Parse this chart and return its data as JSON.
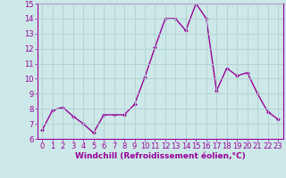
{
  "x": [
    0,
    1,
    2,
    3,
    4,
    5,
    6,
    7,
    8,
    9,
    10,
    11,
    12,
    13,
    14,
    15,
    16,
    17,
    18,
    19,
    20,
    21,
    22,
    23
  ],
  "y": [
    6.6,
    7.9,
    8.1,
    7.5,
    7.0,
    6.4,
    7.6,
    7.6,
    7.6,
    8.3,
    10.1,
    12.1,
    14.0,
    14.0,
    13.2,
    15.0,
    14.0,
    9.2,
    10.7,
    10.2,
    10.4,
    9.0,
    7.8,
    7.3
  ],
  "line_color": "#990099",
  "marker": "D",
  "marker_size": 2.0,
  "line_width": 1.0,
  "xlabel": "Windchill (Refroidissement éolien,°C)",
  "xlabel_fontsize": 6.5,
  "ylim": [
    6,
    15
  ],
  "xlim": [
    -0.5,
    23.5
  ],
  "yticks": [
    6,
    7,
    8,
    9,
    10,
    11,
    12,
    13,
    14,
    15
  ],
  "xticks": [
    0,
    1,
    2,
    3,
    4,
    5,
    6,
    7,
    8,
    9,
    10,
    11,
    12,
    13,
    14,
    15,
    16,
    17,
    18,
    19,
    20,
    21,
    22,
    23
  ],
  "bg_color": "#cce8e8",
  "grid_color": "#b0d0d0",
  "tick_label_fontsize": 6.0,
  "tick_color": "#990099",
  "axis_color": "#990099",
  "xlabel_color": "#990099"
}
